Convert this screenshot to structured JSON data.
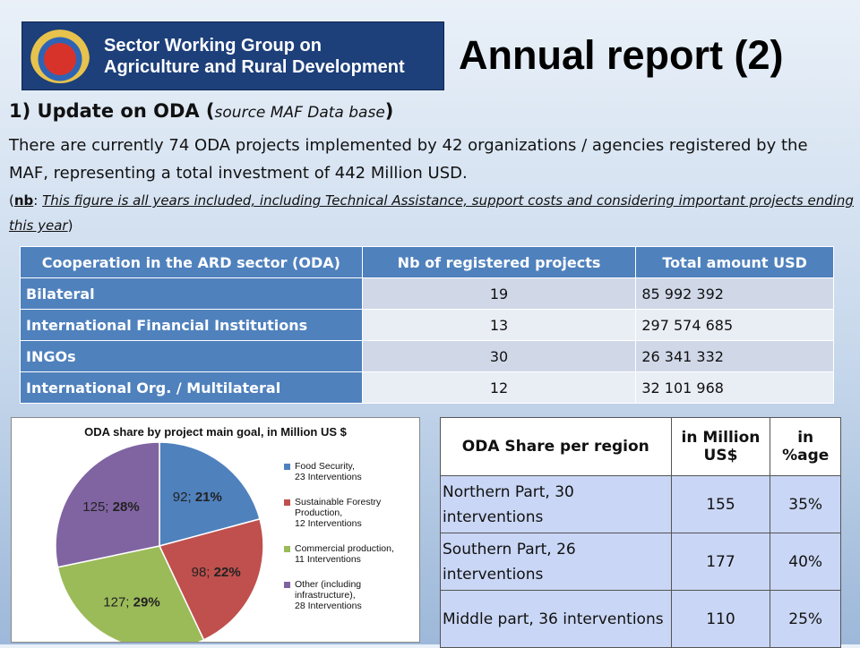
{
  "banner": {
    "line1": "Sector Working Group on",
    "line2": "Agriculture and Rural Development"
  },
  "title": "Annual report (2)",
  "section": {
    "heading": "1) Update on ODA (",
    "source": "source MAF Data base",
    "close": ")"
  },
  "paragraph": "There are currently 74 ODA projects implemented by 42 organizations / agencies registered by the MAF, representing a total investment of 442 Million USD.",
  "note": {
    "open": "(",
    "nb": "nb",
    "colon": ": ",
    "text": "This figure is all years included, including Technical Assistance, support costs and considering important projects ending this year",
    "close": ")"
  },
  "oda_table": {
    "headers": [
      "Cooperation in the ARD sector (ODA)",
      "Nb of registered projects",
      "Total amount USD"
    ],
    "rows": [
      {
        "category": "Bilateral",
        "projects": "19",
        "amount": "85 992 392"
      },
      {
        "category": "International Financial Institutions",
        "projects": "13",
        "amount": "297 574 685"
      },
      {
        "category": "INGOs",
        "projects": "30",
        "amount": "26 341 332"
      },
      {
        "category": "International Org. / Multilateral",
        "projects": "12",
        "amount": "32 101 968"
      }
    ]
  },
  "chart_data": {
    "type": "pie",
    "title": "ODA share by project main goal, in Million US $",
    "slices": [
      {
        "name": "Food Security, 23 Interventions",
        "value": 92,
        "pct": 21,
        "label_value": "92; ",
        "label_pct": "21%",
        "color": "#4f81bd"
      },
      {
        "name": "Sustainable Forestry Production, 12 Interventions",
        "value": 98,
        "pct": 22,
        "label_value": "98; ",
        "label_pct": "22%",
        "color": "#c0504d"
      },
      {
        "name": "Commercial production, 11 Interventions",
        "value": 127,
        "pct": 29,
        "label_value": "127; ",
        "label_pct": "29%",
        "color": "#9bbb59"
      },
      {
        "name": "Other (including infrastructure), 28 Interventions",
        "value": 125,
        "pct": 28,
        "label_value": "125; ",
        "label_pct": "28%",
        "color": "#8064a2"
      }
    ],
    "legend": [
      [
        "Food Security,",
        "23 Interventions"
      ],
      [
        "Sustainable Forestry",
        "Production,",
        "12 Interventions"
      ],
      [
        "Commercial production,",
        "11 Interventions"
      ],
      [
        "Other (including",
        "infrastructure),",
        "28 Interventions"
      ]
    ],
    "legend_position": "right"
  },
  "region_table": {
    "headers": [
      "ODA Share per region",
      "in Million US$",
      "in %age"
    ],
    "rows": [
      {
        "region": "Northern Part, 30 interventions",
        "amount": "155",
        "pct": "35%"
      },
      {
        "region": "Southern Part, 26 interventions",
        "amount": "177",
        "pct": "40%"
      },
      {
        "region": "Middle part, 36 interventions",
        "amount": "110",
        "pct": "25%"
      }
    ]
  }
}
